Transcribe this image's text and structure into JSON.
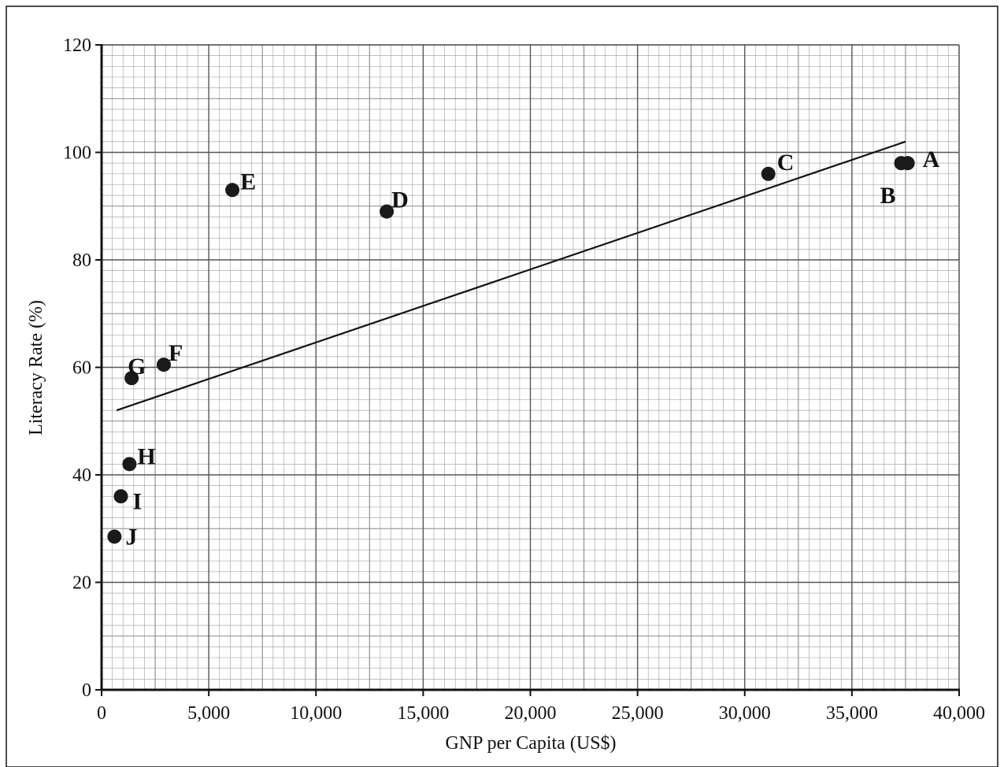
{
  "chart_data": {
    "type": "scatter",
    "xlabel": "GNP per Capita (US$)",
    "ylabel": "Literacy Rate (%)",
    "xlim": [
      0,
      40000
    ],
    "ylim": [
      0,
      120
    ],
    "x_ticks": [
      0,
      5000,
      10000,
      15000,
      20000,
      25000,
      30000,
      35000,
      40000
    ],
    "x_tick_labels": [
      "0",
      "5,000",
      "10,000",
      "15,000",
      "20,000",
      "25,000",
      "30,000",
      "35,000",
      "40,000"
    ],
    "y_ticks": [
      0,
      20,
      40,
      60,
      80,
      100,
      120
    ],
    "y_tick_labels": [
      "0",
      "20",
      "40",
      "60",
      "80",
      "100",
      "120"
    ],
    "grid": "fine graph-paper grid, major every 5,000 (x) and 10 (y), minor every 500 (x) and 2 (y)",
    "points": [
      {
        "label": "A",
        "x": 37600,
        "y": 98
      },
      {
        "label": "B",
        "x": 37300,
        "y": 98
      },
      {
        "label": "C",
        "x": 31100,
        "y": 96
      },
      {
        "label": "D",
        "x": 13300,
        "y": 89
      },
      {
        "label": "E",
        "x": 6100,
        "y": 93
      },
      {
        "label": "F",
        "x": 2900,
        "y": 60.5
      },
      {
        "label": "G",
        "x": 1400,
        "y": 58
      },
      {
        "label": "H",
        "x": 1300,
        "y": 42
      },
      {
        "label": "I",
        "x": 900,
        "y": 36
      },
      {
        "label": "J",
        "x": 600,
        "y": 28.5
      }
    ],
    "trend_line": {
      "x": [
        700,
        37500
      ],
      "y": [
        52,
        102
      ]
    }
  }
}
